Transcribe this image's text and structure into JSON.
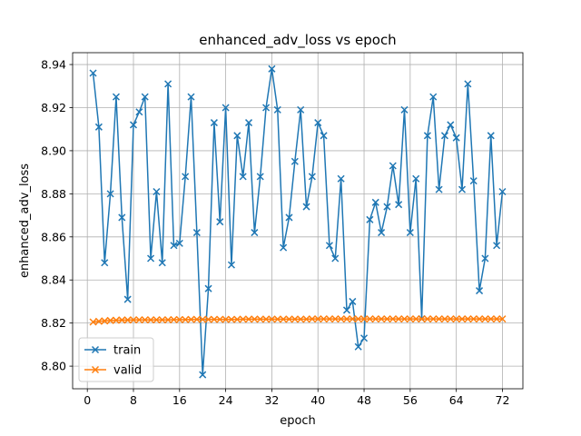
{
  "chart_data": {
    "type": "line",
    "title": "enhanced_adv_loss vs epoch",
    "xlabel": "epoch",
    "ylabel": "enhanced_adv_loss",
    "xlim": [
      -2.55,
      75.55
    ],
    "ylim": [
      8.7895,
      8.9455
    ],
    "xticks": [
      0,
      8,
      16,
      24,
      32,
      40,
      48,
      56,
      64,
      72
    ],
    "yticks": [
      8.8,
      8.82,
      8.84,
      8.86,
      8.88,
      8.9,
      8.92,
      8.94
    ],
    "ytick_labels": [
      "8.80",
      "8.82",
      "8.84",
      "8.86",
      "8.88",
      "8.90",
      "8.92",
      "8.94"
    ],
    "grid": true,
    "legend_position": "lower-left",
    "marker": "x",
    "x": [
      1,
      2,
      3,
      4,
      5,
      6,
      7,
      8,
      9,
      10,
      11,
      12,
      13,
      14,
      15,
      16,
      17,
      18,
      19,
      20,
      21,
      22,
      23,
      24,
      25,
      26,
      27,
      28,
      29,
      30,
      31,
      32,
      33,
      34,
      35,
      36,
      37,
      38,
      39,
      40,
      41,
      42,
      43,
      44,
      45,
      46,
      47,
      48,
      49,
      50,
      51,
      52,
      53,
      54,
      55,
      56,
      57,
      58,
      59,
      60,
      61,
      62,
      63,
      64,
      65,
      66,
      67,
      68,
      69,
      70,
      71,
      72
    ],
    "series": [
      {
        "name": "train",
        "color": "#1f77b4",
        "values": [
          8.936,
          8.911,
          8.848,
          8.88,
          8.925,
          8.869,
          8.831,
          8.912,
          8.918,
          8.925,
          8.85,
          8.881,
          8.848,
          8.931,
          8.856,
          8.857,
          8.888,
          8.925,
          8.862,
          8.796,
          8.836,
          8.913,
          8.867,
          8.92,
          8.847,
          8.907,
          8.888,
          8.913,
          8.862,
          8.888,
          8.92,
          8.938,
          8.919,
          8.855,
          8.869,
          8.895,
          8.919,
          8.874,
          8.888,
          8.913,
          8.907,
          8.856,
          8.85,
          8.887,
          8.826,
          8.83,
          8.809,
          8.813,
          8.868,
          8.876,
          8.862,
          8.874,
          8.893,
          8.875,
          8.919,
          8.862,
          8.887,
          8.822,
          8.907,
          8.925,
          8.882,
          8.907,
          8.912,
          8.906,
          8.882,
          8.931,
          8.886,
          8.835,
          8.85,
          8.907,
          8.856,
          8.881
        ]
      },
      {
        "name": "valid",
        "color": "#ff7f0e",
        "values": [
          8.8205,
          8.8208,
          8.821,
          8.8212,
          8.8213,
          8.8214,
          8.8214,
          8.8215,
          8.8215,
          8.8215,
          8.8215,
          8.8215,
          8.8215,
          8.8215,
          8.8216,
          8.8216,
          8.8216,
          8.8217,
          8.8217,
          8.8217,
          8.8217,
          8.8217,
          8.8217,
          8.8217,
          8.8217,
          8.8217,
          8.8218,
          8.8218,
          8.8218,
          8.8218,
          8.8218,
          8.8218,
          8.8218,
          8.8218,
          8.8218,
          8.8218,
          8.8218,
          8.8218,
          8.8219,
          8.8219,
          8.8219,
          8.8219,
          8.8219,
          8.8219,
          8.8219,
          8.8219,
          8.8219,
          8.8219,
          8.8219,
          8.8219,
          8.8219,
          8.8219,
          8.8219,
          8.8219,
          8.8219,
          8.8219,
          8.8219,
          8.8219,
          8.8219,
          8.8219,
          8.8219,
          8.8219,
          8.8219,
          8.8219,
          8.8219,
          8.8219,
          8.8219,
          8.8219,
          8.8219,
          8.8219,
          8.8219,
          8.8219
        ]
      }
    ]
  }
}
